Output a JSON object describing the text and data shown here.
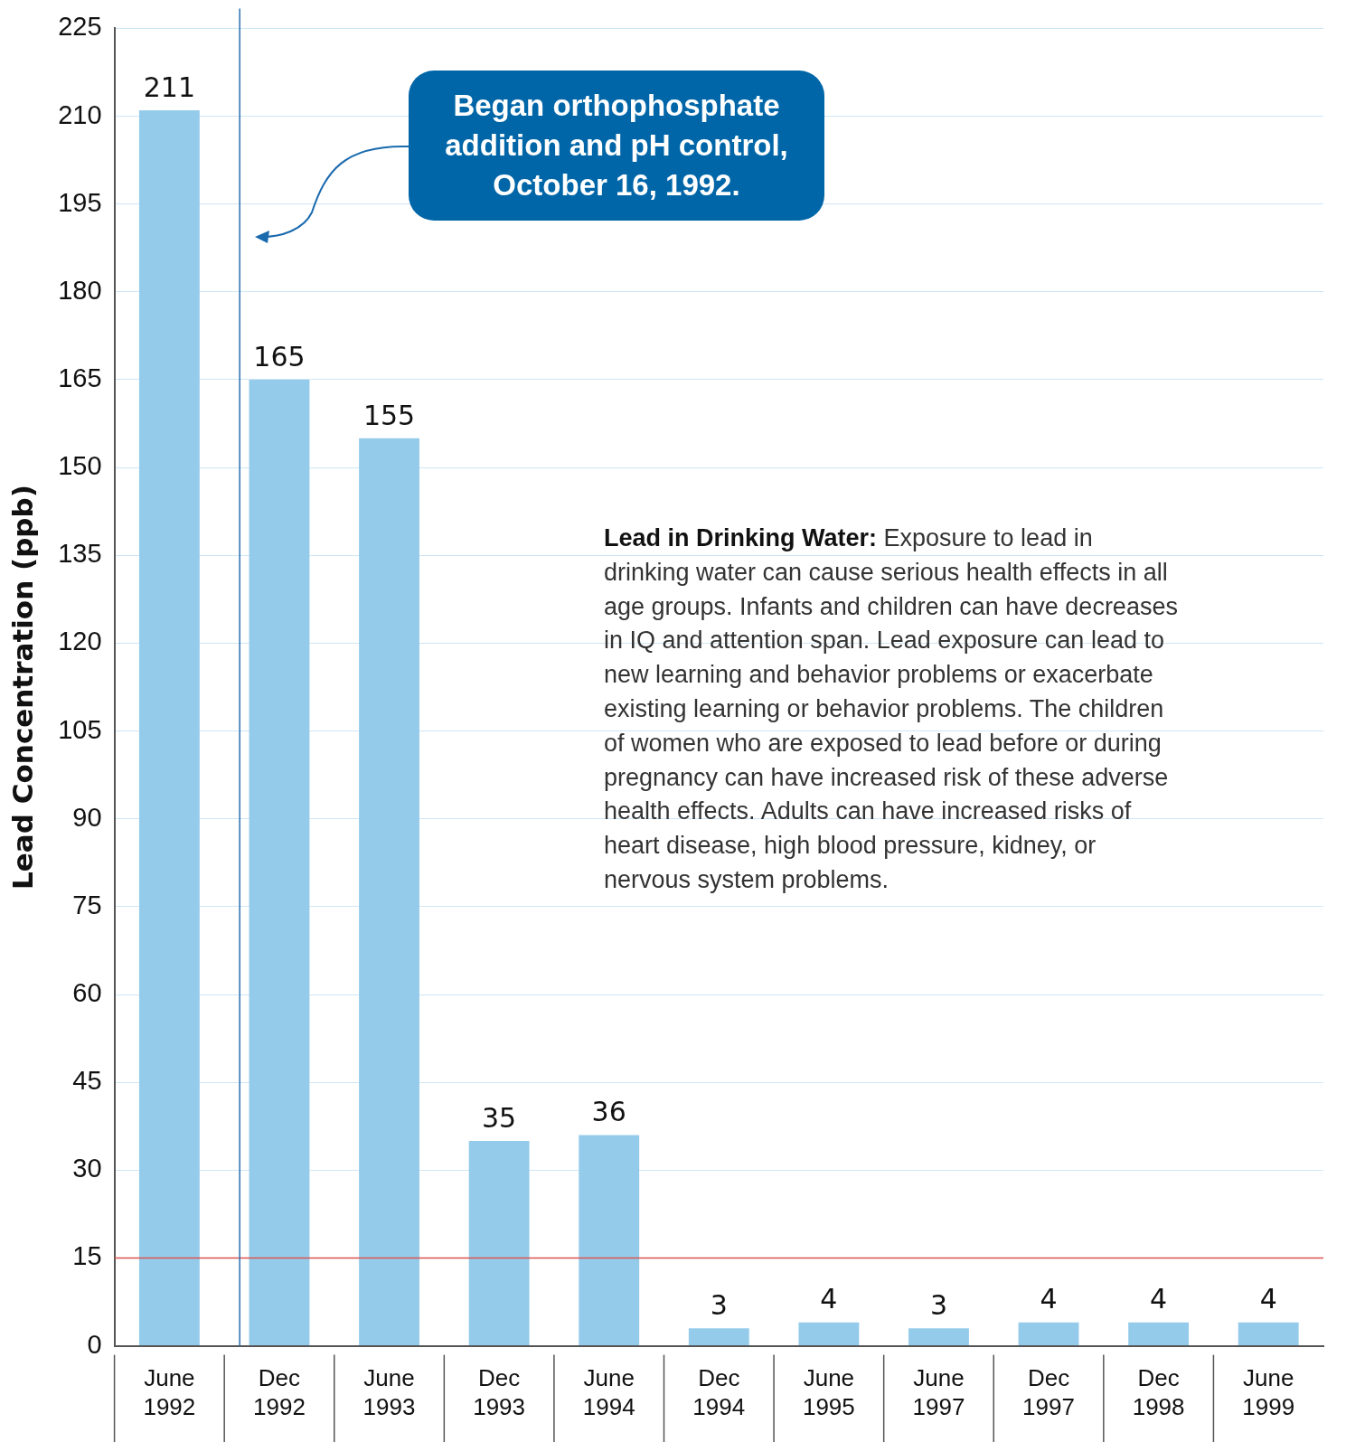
{
  "chart_data": {
    "type": "bar",
    "ylabel": "Lead Concentration (ppb)",
    "categories": [
      "June 1992",
      "Dec 1992",
      "June 1993",
      "Dec 1993",
      "June 1994",
      "Dec 1994",
      "June 1995",
      "June 1997",
      "Dec 1997",
      "Dec 1998",
      "June 1999"
    ],
    "values": [
      211,
      165,
      155,
      35,
      36,
      3,
      4,
      3,
      4,
      4,
      4
    ],
    "color": "#95cbea",
    "ylim": [
      0,
      225
    ],
    "yticks": [
      0,
      15,
      30,
      45,
      60,
      75,
      90,
      105,
      120,
      135,
      150,
      165,
      180,
      195,
      210,
      225
    ],
    "grid": "y",
    "data_labels": true,
    "ref_lines": [
      {
        "axis": "y",
        "value": 15,
        "color": "#d9534f"
      },
      {
        "axis": "x",
        "value": "Dec 1992",
        "color": "#2a6fb0"
      }
    ],
    "annotations": [
      "Began orthophosphate addition and pH control, October 16, 1992.",
      "Lead in Drinking Water: Exposure to lead in drinking water can cause serious health effects in all age groups. Infants and children can have decreases in IQ and attention span. Lead exposure can lead to new learning and behavior problems or exacerbate existing learning or behavior problems. The children of women who are exposed to lead before or during pregnancy can have increased risk of these adverse health effects. Adults can have increased risks of heart disease, high blood pressure, kidney, or nervous system problems."
    ]
  }
}
